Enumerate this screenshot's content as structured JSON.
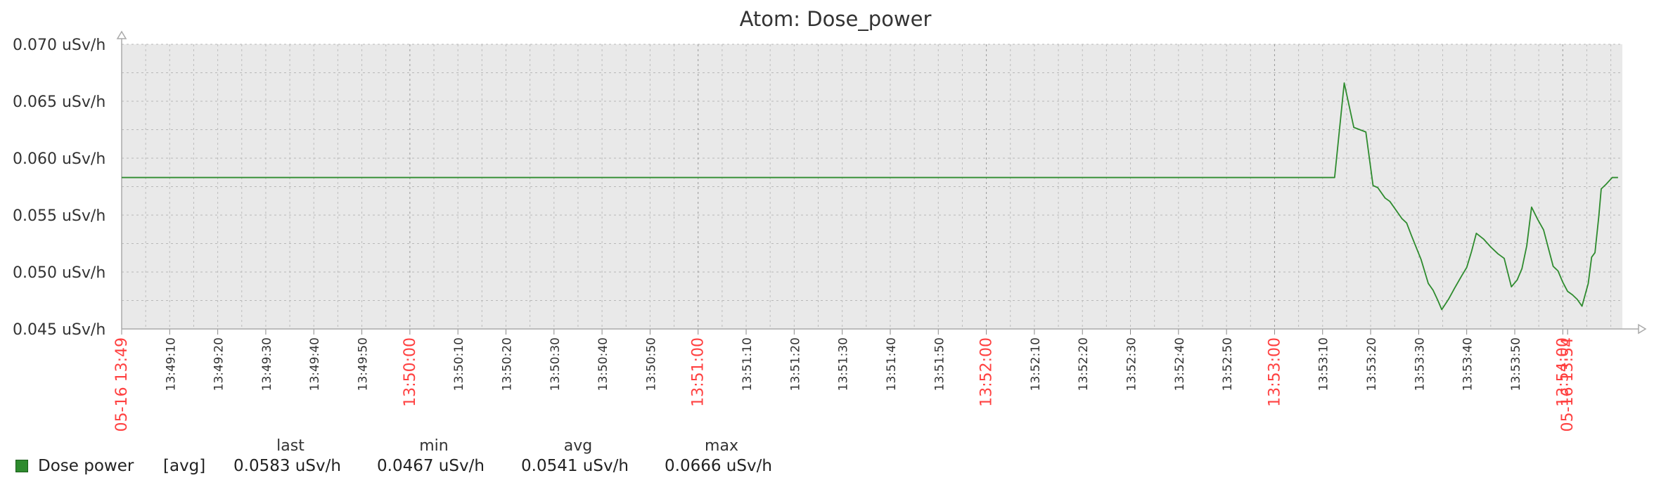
{
  "chart_data": {
    "type": "line",
    "title": "Atom: Dose_power",
    "xlabel": "",
    "ylabel": "",
    "y_tick_labels": [
      "0.070 uSv/h",
      "0.065 uSv/h",
      "0.060 uSv/h",
      "0.055 uSv/h",
      "0.050 uSv/h",
      "0.045 uSv/h"
    ],
    "ylim": [
      0.045,
      0.07
    ],
    "xlim_seconds": [
      0,
      301
    ],
    "x_time_labels": [
      {
        "t": 0,
        "label": "05-16 13:49",
        "major": true
      },
      {
        "t": 10,
        "label": "13:49:10",
        "major": false
      },
      {
        "t": 20,
        "label": "13:49:20",
        "major": false
      },
      {
        "t": 30,
        "label": "13:49:30",
        "major": false
      },
      {
        "t": 40,
        "label": "13:49:40",
        "major": false
      },
      {
        "t": 50,
        "label": "13:49:50",
        "major": false
      },
      {
        "t": 60,
        "label": "13:50:00",
        "major": true
      },
      {
        "t": 70,
        "label": "13:50:10",
        "major": false
      },
      {
        "t": 80,
        "label": "13:50:20",
        "major": false
      },
      {
        "t": 90,
        "label": "13:50:30",
        "major": false
      },
      {
        "t": 100,
        "label": "13:50:40",
        "major": false
      },
      {
        "t": 110,
        "label": "13:50:50",
        "major": false
      },
      {
        "t": 120,
        "label": "13:51:00",
        "major": true
      },
      {
        "t": 130,
        "label": "13:51:10",
        "major": false
      },
      {
        "t": 140,
        "label": "13:51:20",
        "major": false
      },
      {
        "t": 150,
        "label": "13:51:30",
        "major": false
      },
      {
        "t": 160,
        "label": "13:51:40",
        "major": false
      },
      {
        "t": 170,
        "label": "13:51:50",
        "major": false
      },
      {
        "t": 180,
        "label": "13:52:00",
        "major": true
      },
      {
        "t": 190,
        "label": "13:52:10",
        "major": false
      },
      {
        "t": 200,
        "label": "13:52:20",
        "major": false
      },
      {
        "t": 210,
        "label": "13:52:30",
        "major": false
      },
      {
        "t": 220,
        "label": "13:52:40",
        "major": false
      },
      {
        "t": 230,
        "label": "13:52:50",
        "major": false
      },
      {
        "t": 240,
        "label": "13:53:00",
        "major": true
      },
      {
        "t": 250,
        "label": "13:53:10",
        "major": false
      },
      {
        "t": 260,
        "label": "13:53:20",
        "major": false
      },
      {
        "t": 270,
        "label": "13:53:30",
        "major": false
      },
      {
        "t": 280,
        "label": "13:53:40",
        "major": false
      },
      {
        "t": 290,
        "label": "13:53:50",
        "major": false
      },
      {
        "t": 300,
        "label": "13:54:00",
        "major": true
      },
      {
        "t": 301,
        "label": "05-16 13:54",
        "major": true
      }
    ],
    "series": [
      {
        "name": "Dose power",
        "color": "#2e8b2e",
        "points": [
          [
            0,
            0.0583
          ],
          [
            252.5,
            0.0583
          ],
          [
            254.5,
            0.0666
          ],
          [
            256.5,
            0.0627
          ],
          [
            259,
            0.0623
          ],
          [
            260.5,
            0.0576
          ],
          [
            261.5,
            0.0574
          ],
          [
            263,
            0.0565
          ],
          [
            264,
            0.0562
          ],
          [
            265.5,
            0.0553
          ],
          [
            266.5,
            0.0547
          ],
          [
            267.5,
            0.0543
          ],
          [
            268.5,
            0.0532
          ],
          [
            270.5,
            0.0511
          ],
          [
            272,
            0.049
          ],
          [
            273,
            0.0484
          ],
          [
            274,
            0.0475
          ],
          [
            274.8,
            0.0467
          ],
          [
            276.2,
            0.0476
          ],
          [
            277.5,
            0.0486
          ],
          [
            279,
            0.0497
          ],
          [
            280,
            0.0504
          ],
          [
            281,
            0.0518
          ],
          [
            282,
            0.0534
          ],
          [
            283.5,
            0.0529
          ],
          [
            285,
            0.0522
          ],
          [
            286.5,
            0.0516
          ],
          [
            287.8,
            0.0512
          ],
          [
            289.3,
            0.0487
          ],
          [
            290.5,
            0.0493
          ],
          [
            291.5,
            0.0503
          ],
          [
            292.5,
            0.0523
          ],
          [
            293.5,
            0.0557
          ],
          [
            294.8,
            0.0546
          ],
          [
            296,
            0.0537
          ],
          [
            297,
            0.0521
          ],
          [
            298,
            0.0505
          ],
          [
            299,
            0.0501
          ],
          [
            300,
            0.0491
          ],
          [
            301,
            0.0483
          ],
          [
            302,
            0.048
          ],
          [
            303,
            0.0476
          ],
          [
            304,
            0.047
          ],
          [
            305.3,
            0.049
          ],
          [
            306,
            0.0513
          ],
          [
            306.7,
            0.0517
          ],
          [
            307.5,
            0.0549
          ],
          [
            308,
            0.0573
          ],
          [
            309,
            0.0577
          ],
          [
            310.3,
            0.0583
          ],
          [
            311.5,
            0.0583
          ]
        ]
      }
    ],
    "legend": {
      "headers": [
        "last",
        "min",
        "avg",
        "max"
      ],
      "items": [
        {
          "name": "Dose power",
          "func": "[avg]",
          "last": "0.0583 uSv/h",
          "min": "0.0467 uSv/h",
          "avg": "0.0541 uSv/h",
          "max": "0.0666 uSv/h"
        }
      ]
    },
    "grid": true,
    "colors": {
      "plot_bg": "#e9e9e9",
      "major_label": "#ff4040",
      "minor_label": "#333333",
      "line": "#2e8b2e"
    }
  }
}
